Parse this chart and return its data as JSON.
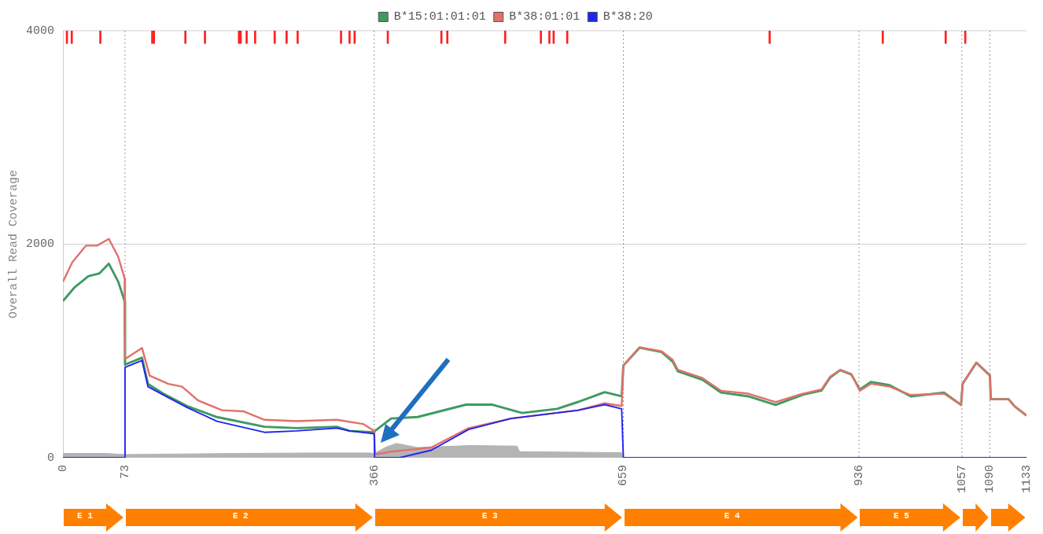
{
  "chart_data": {
    "type": "line",
    "ylabel": "Overall Read Coverage",
    "xlim": [
      0,
      1133
    ],
    "ylim": [
      0,
      4000
    ],
    "xticks": [
      0,
      73,
      366,
      659,
      936,
      1057,
      1090,
      1133
    ],
    "yticks": [
      0,
      2000,
      4000
    ],
    "ref_lines": [
      {
        "axis": "y",
        "value": 2000,
        "line_style": "solid",
        "color": "#d0d0d0"
      },
      {
        "axis": "y",
        "value": 4000,
        "line_style": "solid",
        "color": "#d0d0d0"
      },
      {
        "axis": "x",
        "value": 73,
        "line_style": "dotted",
        "color": "#999999"
      },
      {
        "axis": "x",
        "value": 366,
        "line_style": "dotted",
        "color": "#999999"
      },
      {
        "axis": "x",
        "value": 659,
        "line_style": "dotted",
        "color": "#999999"
      },
      {
        "axis": "x",
        "value": 936,
        "line_style": "dotted",
        "color": "#999999"
      },
      {
        "axis": "x",
        "value": 1057,
        "line_style": "dotted",
        "color": "#999999"
      },
      {
        "axis": "x",
        "value": 1090,
        "line_style": "dotted",
        "color": "#999999"
      }
    ],
    "legend": "top",
    "marker": "none",
    "annotations": [
      "E 1",
      "E 2",
      "E 3",
      "E 4",
      "E 5"
    ],
    "series": [
      {
        "type": "area",
        "color": "#b4b4b4",
        "x": [
          0,
          50,
          73,
          200,
          300,
          360,
          366,
          380,
          392,
          417,
          480,
          534,
          537,
          657,
          659,
          1133
        ],
        "values": [
          40,
          40,
          30,
          40,
          45,
          45,
          40,
          100,
          134,
          96,
          114,
          109,
          57,
          47,
          0,
          0
        ]
      },
      {
        "name": "B*15:01:01:01",
        "color": "#3f9a62",
        "x": [
          0,
          14,
          30,
          43,
          54,
          65,
          72.5,
          73,
          93,
          100,
          118,
          146,
          181,
          237,
          275,
          322,
          337,
          366,
          367,
          386,
          417,
          474,
          505,
          540,
          581,
          606,
          637,
          657,
          659,
          678,
          704,
          717,
          723,
          752,
          774,
          806,
          838,
          870,
          892,
          902,
          914,
          927,
          937,
          950,
          972,
          997,
          1036,
          1056,
          1058,
          1074,
          1090,
          1091,
          1112,
          1119,
          1133
        ],
        "values": [
          1468,
          1598,
          1701,
          1727,
          1817,
          1649,
          1468,
          872,
          937,
          691,
          600,
          484,
          381,
          290,
          277,
          290,
          251,
          238,
          251,
          367,
          381,
          497,
          497,
          419,
          458,
          523,
          614,
          575,
          864,
          1030,
          990,
          900,
          810,
          730,
          610,
          575,
          495,
          590,
          630,
          750,
          820,
          780,
          640,
          710,
          680,
          575,
          610,
          495,
          693,
          890,
          771,
          548,
          548,
          482,
          395
        ]
      },
      {
        "name": "B*38:01:01",
        "color": "#e0726a",
        "x": [
          0,
          11,
          27,
          40,
          54,
          65,
          72.5,
          73,
          93,
          102,
          124,
          140,
          159,
          187,
          212,
          237,
          275,
          322,
          353,
          366,
          367,
          386,
          433,
          477,
          527,
          606,
          637,
          657,
          659,
          678,
          704,
          717,
          723,
          752,
          774,
          806,
          838,
          870,
          892,
          902,
          914,
          927,
          937,
          950,
          972,
          997,
          1036,
          1056,
          1058,
          1074,
          1090,
          1091,
          1112,
          1119,
          1133
        ],
        "values": [
          1649,
          1831,
          1986,
          1986,
          2050,
          1882,
          1678,
          924,
          1028,
          769,
          691,
          666,
          536,
          445,
          435,
          355,
          342,
          355,
          316,
          251,
          31,
          57,
          96,
          277,
          367,
          445,
          510,
          484,
          864,
          1035,
          996,
          917,
          824,
          746,
          627,
          600,
          521,
          600,
          640,
          758,
          824,
          784,
          627,
          693,
          666,
          587,
          600,
          495,
          693,
          890,
          771,
          548,
          548,
          482,
          395
        ]
      },
      {
        "name": "B*38:20",
        "color": "#2323f0",
        "x": [
          0,
          72.9,
          73,
          93,
          100,
          118,
          146,
          181,
          237,
          275,
          322,
          337,
          366,
          366.5,
          396,
          433,
          477,
          527,
          606,
          637,
          657,
          659,
          1133
        ],
        "values": [
          0,
          0,
          847,
          911,
          666,
          588,
          471,
          342,
          238,
          251,
          277,
          251,
          225,
          0,
          0,
          70,
          264,
          367,
          445,
          497,
          458,
          0,
          0
        ]
      },
      {
        "type": "bar",
        "color": "#ff2020",
        "x": [
          4.7,
          10.4,
          44,
          105,
          107,
          144,
          167,
          207,
          209,
          216,
          226,
          249,
          263,
          276,
          327,
          337,
          343,
          382,
          445,
          452,
          520,
          562,
          572,
          577,
          593,
          831,
          964,
          1038,
          1061
        ],
        "base": [
          3880,
          3880,
          3880,
          3880,
          3880,
          3880,
          3880,
          3880,
          3880,
          3880,
          3880,
          3880,
          3880,
          3880,
          3880,
          3880,
          3880,
          3880,
          3880,
          3880,
          3880,
          3880,
          3880,
          3880,
          3880,
          3880,
          3880,
          3880,
          3880
        ],
        "values": [
          120,
          120,
          120,
          120,
          120,
          120,
          120,
          120,
          120,
          120,
          120,
          120,
          120,
          120,
          120,
          120,
          120,
          120,
          120,
          120,
          120,
          120,
          120,
          120,
          120,
          120,
          120,
          120,
          120
        ]
      }
    ]
  }
}
